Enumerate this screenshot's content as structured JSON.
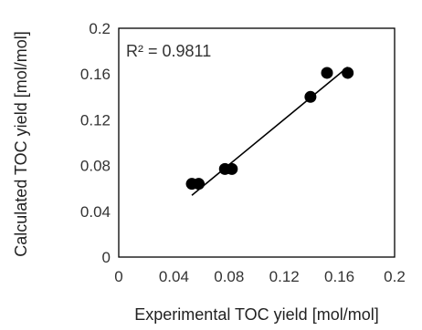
{
  "chart_data": {
    "type": "scatter",
    "xlabel": "Experimental TOC yield [mol/mol]",
    "ylabel": "Calculated TOC yield [mol/mol]",
    "xlim": [
      0,
      0.2
    ],
    "ylim": [
      0,
      0.2
    ],
    "x_ticks": [
      0,
      0.04,
      0.08,
      0.12,
      0.16,
      0.2
    ],
    "y_ticks": [
      0,
      0.04,
      0.08,
      0.12,
      0.16,
      0.2
    ],
    "x_tick_labels": [
      "0",
      "0.04",
      "0.08",
      "0.12",
      "0.16",
      "0.2"
    ],
    "y_tick_labels": [
      "0",
      "0.04",
      "0.08",
      "0.12",
      "0.16",
      "0.2"
    ],
    "grid": false,
    "legend": "none",
    "annotation": "R² = 0.9811",
    "series": [
      {
        "points": [
          {
            "x": 0.053,
            "y": 0.064
          },
          {
            "x": 0.058,
            "y": 0.064
          },
          {
            "x": 0.077,
            "y": 0.077
          },
          {
            "x": 0.082,
            "y": 0.077
          },
          {
            "x": 0.139,
            "y": 0.14
          },
          {
            "x": 0.151,
            "y": 0.161
          },
          {
            "x": 0.166,
            "y": 0.161
          }
        ]
      }
    ],
    "trendline": {
      "x_start": 0.053,
      "y_start": 0.054,
      "x_end": 0.166,
      "y_end": 0.166
    },
    "colors": {
      "markers": "#000000",
      "line": "#000000",
      "frame": "#000000"
    }
  }
}
